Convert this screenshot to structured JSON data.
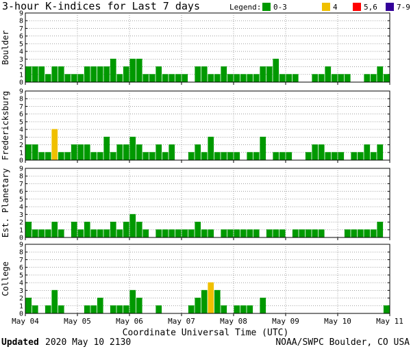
{
  "title": "3-hour K-indices for Last 7 days",
  "legend": {
    "label": "Legend:",
    "items": [
      {
        "label": "0-3",
        "color": "#009900"
      },
      {
        "label": "4",
        "color": "#f0c000"
      },
      {
        "label": "5,6",
        "color": "#ff0000"
      },
      {
        "label": "7-9",
        "color": "#330099"
      }
    ]
  },
  "footer": {
    "updated_label": "Updated",
    "updated_value": "2020 May 10 2130",
    "credit": "NOAA/SWPC Boulder, CO USA"
  },
  "chart_data": {
    "type": "bar",
    "xlabel": "Coordinate Universal Time (UTC)",
    "x_ticks": [
      "May 04",
      "May 05",
      "May 06",
      "May 07",
      "May 08",
      "May 09",
      "May 10",
      "May 11"
    ],
    "ylim": [
      0,
      9
    ],
    "y_ticks": [
      "0",
      "1",
      "2",
      "3",
      "4",
      "5",
      "6",
      "7",
      "8",
      "9"
    ],
    "bins_per_day": 8,
    "thresholds": {
      "green_max": 3,
      "yellow": 4,
      "red_max": 6
    },
    "panels": [
      {
        "name": "Boulder",
        "values": [
          2,
          2,
          2,
          1,
          2,
          2,
          1,
          1,
          1,
          2,
          2,
          2,
          2,
          3,
          1,
          2,
          3,
          3,
          1,
          1,
          2,
          1,
          1,
          1,
          1,
          0,
          2,
          2,
          1,
          1,
          2,
          1,
          1,
          1,
          1,
          1,
          2,
          2,
          3,
          1,
          1,
          1,
          0,
          0,
          1,
          1,
          2,
          1,
          1,
          1,
          0,
          0,
          1,
          1,
          2,
          1,
          0
        ]
      },
      {
        "name": "Fredericksburg",
        "values": [
          2,
          2,
          1,
          1,
          4,
          1,
          1,
          2,
          2,
          2,
          1,
          1,
          3,
          1,
          2,
          2,
          3,
          2,
          1,
          1,
          2,
          1,
          2,
          0,
          0,
          1,
          2,
          1,
          3,
          1,
          1,
          1,
          1,
          0,
          1,
          1,
          3,
          0,
          1,
          1,
          1,
          0,
          0,
          1,
          2,
          2,
          1,
          1,
          1,
          0,
          1,
          1,
          2,
          1,
          2,
          0
        ]
      },
      {
        "name": "Est. Planetary",
        "values": [
          2,
          1,
          1,
          1,
          2,
          1,
          0,
          2,
          1,
          2,
          1,
          1,
          1,
          2,
          1,
          2,
          3,
          2,
          1,
          0,
          1,
          1,
          1,
          1,
          1,
          1,
          2,
          1,
          1,
          0,
          1,
          1,
          1,
          1,
          1,
          1,
          0,
          1,
          1,
          1,
          0,
          1,
          1,
          1,
          1,
          1,
          0,
          0,
          0,
          1,
          1,
          1,
          1,
          1,
          2
        ]
      },
      {
        "name": "College",
        "values": [
          2,
          1,
          0,
          1,
          3,
          1,
          0,
          0,
          0,
          1,
          1,
          2,
          0,
          1,
          1,
          1,
          3,
          2,
          0,
          0,
          1,
          0,
          0,
          0,
          0,
          1,
          2,
          3,
          4,
          3,
          1,
          0,
          1,
          1,
          1,
          0,
          2,
          0,
          0,
          0,
          0,
          0,
          0,
          0,
          0,
          0,
          0,
          0,
          0,
          0,
          0,
          0,
          0,
          0,
          0,
          1,
          0
        ]
      }
    ]
  }
}
